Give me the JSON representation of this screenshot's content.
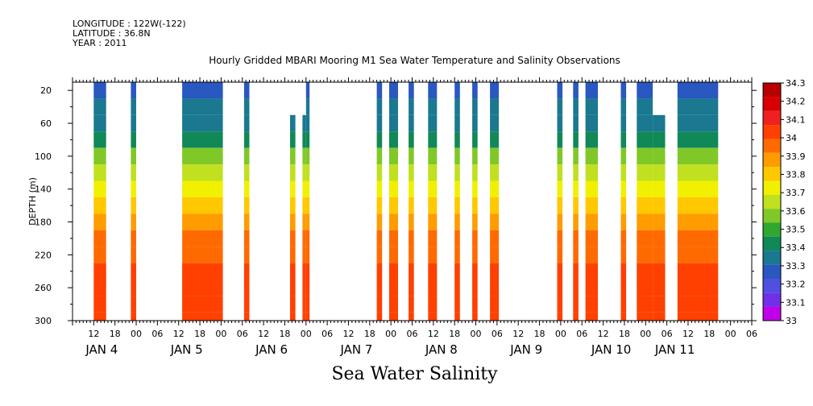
{
  "meta": {
    "longitude": "LONGITUDE : 122W(-122)",
    "latitude": "LATITUDE : 36.8N",
    "year": "YEAR : 2011"
  },
  "chart_data": {
    "type": "heatmap",
    "title": "Hourly Gridded MBARI Mooring M1 Sea Water Temperature and Salinity Observations",
    "xlabel": "Sea Water Salinity",
    "ylabel": "DEPTH (m)",
    "ylim": [
      300,
      10
    ],
    "y_ticks": [
      20,
      60,
      100,
      140,
      180,
      220,
      260,
      300
    ],
    "x_range_hours": [
      0,
      192
    ],
    "x_hour_ticks": [
      "12",
      "18",
      "00",
      "06",
      "12",
      "18",
      "00",
      "06",
      "12",
      "18",
      "00",
      "06",
      "12",
      "18",
      "00",
      "06",
      "12",
      "18",
      "00",
      "06",
      "12",
      "18",
      "00",
      "06",
      "12",
      "18",
      "00",
      "06",
      "12",
      "18",
      "00",
      "06"
    ],
    "x_day_labels": [
      "JAN  4",
      "JAN  5",
      "JAN  6",
      "JAN  7",
      "JAN  8",
      "JAN  9",
      "JAN 10",
      "JAN 11"
    ],
    "colorbar": {
      "levels": [
        "34.3",
        "34.2",
        "34.1",
        "34",
        "33.9",
        "33.8",
        "33.7",
        "33.6",
        "33.5",
        "33.4",
        "33.3",
        "33.2",
        "33.1",
        "33"
      ],
      "colors": [
        "#b80000",
        "#d80000",
        "#f02020",
        "#ff4000",
        "#ff6a00",
        "#ff9c00",
        "#ffc800",
        "#f0f000",
        "#c0e020",
        "#80c828",
        "#30a830",
        "#108858",
        "#1a7890",
        "#2858c0",
        "#5050e0",
        "#7030e8",
        "#c000e8"
      ]
    },
    "profile_colors": [
      {
        "depth": 20,
        "salinity": 33.25
      },
      {
        "depth": 40,
        "salinity": 33.3
      },
      {
        "depth": 60,
        "salinity": 33.35
      },
      {
        "depth": 80,
        "salinity": 33.45
      },
      {
        "depth": 100,
        "salinity": 33.6
      },
      {
        "depth": 120,
        "salinity": 33.75
      },
      {
        "depth": 140,
        "salinity": 33.85
      },
      {
        "depth": 160,
        "salinity": 33.95
      },
      {
        "depth": 180,
        "salinity": 34.05
      },
      {
        "depth": 200,
        "salinity": 34.1
      },
      {
        "depth": 220,
        "salinity": 34.15
      },
      {
        "depth": 240,
        "salinity": 34.2
      },
      {
        "depth": 260,
        "salinity": 34.25
      },
      {
        "depth": 280,
        "salinity": 34.2
      },
      {
        "depth": 300,
        "salinity": 34.2
      }
    ],
    "data_segments": [
      {
        "start_hour": 6,
        "end_hour": 9.5,
        "top_depth": 20
      },
      {
        "start_hour": 16.5,
        "end_hour": 18,
        "top_depth": 20
      },
      {
        "start_hour": 31,
        "end_hour": 42.5,
        "top_depth": 20
      },
      {
        "start_hour": 48.5,
        "end_hour": 50,
        "top_depth": 20
      },
      {
        "start_hour": 61.5,
        "end_hour": 63,
        "top_depth": 60
      },
      {
        "start_hour": 65,
        "end_hour": 66,
        "top_depth": 60
      },
      {
        "start_hour": 66,
        "end_hour": 67,
        "top_depth": 20
      },
      {
        "start_hour": 86,
        "end_hour": 87.5,
        "top_depth": 20
      },
      {
        "start_hour": 89.5,
        "end_hour": 92,
        "top_depth": 20
      },
      {
        "start_hour": 95,
        "end_hour": 96.5,
        "top_depth": 20
      },
      {
        "start_hour": 100.5,
        "end_hour": 103,
        "top_depth": 20
      },
      {
        "start_hour": 108,
        "end_hour": 109.5,
        "top_depth": 20
      },
      {
        "start_hour": 113,
        "end_hour": 114.5,
        "top_depth": 20
      },
      {
        "start_hour": 118,
        "end_hour": 120.5,
        "top_depth": 20
      },
      {
        "start_hour": 137,
        "end_hour": 138.5,
        "top_depth": 20
      },
      {
        "start_hour": 141.5,
        "end_hour": 143,
        "top_depth": 20
      },
      {
        "start_hour": 145,
        "end_hour": 148.5,
        "top_depth": 20
      },
      {
        "start_hour": 155,
        "end_hour": 156.5,
        "top_depth": 20
      },
      {
        "start_hour": 159.5,
        "end_hour": 164,
        "top_depth": 20
      },
      {
        "start_hour": 164,
        "end_hour": 167.5,
        "top_depth": 60
      },
      {
        "start_hour": 171,
        "end_hour": 182.5,
        "top_depth": 20
      }
    ]
  }
}
